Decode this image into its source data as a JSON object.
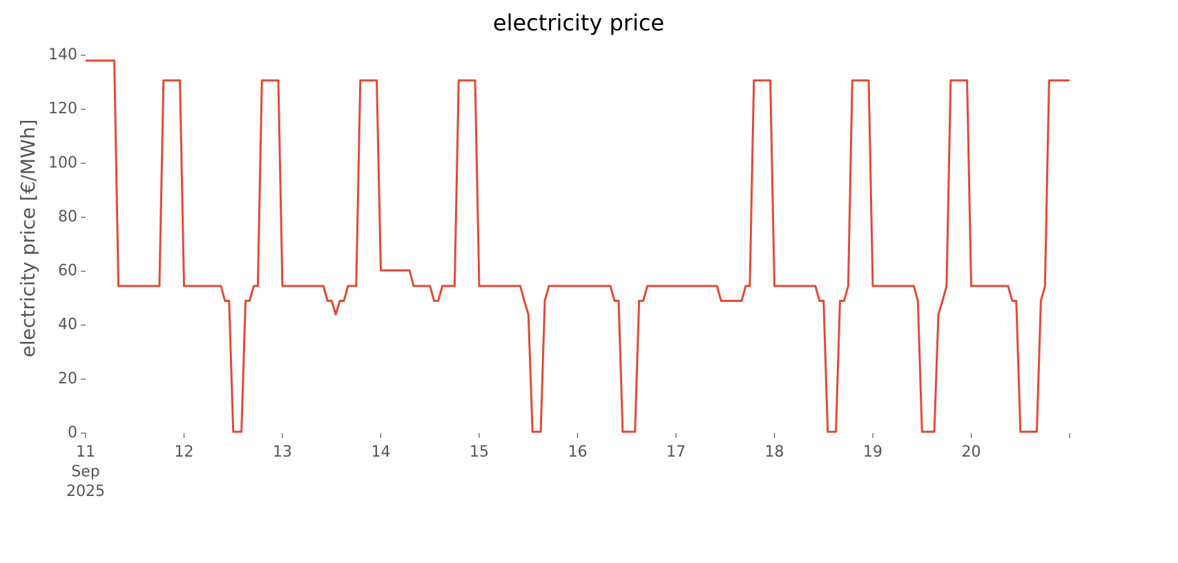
{
  "chart_data": {
    "type": "line",
    "title": "electricity price",
    "ylabel": "electricity price [€/MWh]",
    "x": [
      "2025-09-11 00:00",
      "2025-09-11 01:00",
      "2025-09-11 02:00",
      "2025-09-11 03:00",
      "2025-09-11 04:00",
      "2025-09-11 05:00",
      "2025-09-11 06:00",
      "2025-09-11 07:00",
      "2025-09-11 08:00",
      "2025-09-11 09:00",
      "2025-09-11 10:00",
      "2025-09-11 11:00",
      "2025-09-11 12:00",
      "2025-09-11 13:00",
      "2025-09-11 14:00",
      "2025-09-11 15:00",
      "2025-09-11 16:00",
      "2025-09-11 17:00",
      "2025-09-11 18:00",
      "2025-09-11 19:00",
      "2025-09-11 20:00",
      "2025-09-11 21:00",
      "2025-09-11 22:00",
      "2025-09-11 23:00",
      "2025-09-12 00:00",
      "2025-09-12 01:00",
      "2025-09-12 02:00",
      "2025-09-12 03:00",
      "2025-09-12 04:00",
      "2025-09-12 05:00",
      "2025-09-12 06:00",
      "2025-09-12 07:00",
      "2025-09-12 08:00",
      "2025-09-12 09:00",
      "2025-09-12 10:00",
      "2025-09-12 11:00",
      "2025-09-12 12:00",
      "2025-09-12 13:00",
      "2025-09-12 14:00",
      "2025-09-12 15:00",
      "2025-09-12 16:00",
      "2025-09-12 17:00",
      "2025-09-12 18:00",
      "2025-09-12 19:00",
      "2025-09-12 20:00",
      "2025-09-12 21:00",
      "2025-09-12 22:00",
      "2025-09-12 23:00",
      "2025-09-13 00:00",
      "2025-09-13 01:00",
      "2025-09-13 02:00",
      "2025-09-13 03:00",
      "2025-09-13 04:00",
      "2025-09-13 05:00",
      "2025-09-13 06:00",
      "2025-09-13 07:00",
      "2025-09-13 08:00",
      "2025-09-13 09:00",
      "2025-09-13 10:00",
      "2025-09-13 11:00",
      "2025-09-13 12:00",
      "2025-09-13 13:00",
      "2025-09-13 14:00",
      "2025-09-13 15:00",
      "2025-09-13 16:00",
      "2025-09-13 17:00",
      "2025-09-13 18:00",
      "2025-09-13 19:00",
      "2025-09-13 20:00",
      "2025-09-13 21:00",
      "2025-09-13 22:00",
      "2025-09-13 23:00",
      "2025-09-14 00:00",
      "2025-09-14 01:00",
      "2025-09-14 02:00",
      "2025-09-14 03:00",
      "2025-09-14 04:00",
      "2025-09-14 05:00",
      "2025-09-14 06:00",
      "2025-09-14 07:00",
      "2025-09-14 08:00",
      "2025-09-14 09:00",
      "2025-09-14 10:00",
      "2025-09-14 11:00",
      "2025-09-14 12:00",
      "2025-09-14 13:00",
      "2025-09-14 14:00",
      "2025-09-14 15:00",
      "2025-09-14 16:00",
      "2025-09-14 17:00",
      "2025-09-14 18:00",
      "2025-09-14 19:00",
      "2025-09-14 20:00",
      "2025-09-14 21:00",
      "2025-09-14 22:00",
      "2025-09-14 23:00",
      "2025-09-15 00:00",
      "2025-09-15 01:00",
      "2025-09-15 02:00",
      "2025-09-15 03:00",
      "2025-09-15 04:00",
      "2025-09-15 05:00",
      "2025-09-15 06:00",
      "2025-09-15 07:00",
      "2025-09-15 08:00",
      "2025-09-15 09:00",
      "2025-09-15 10:00",
      "2025-09-15 11:00",
      "2025-09-15 12:00",
      "2025-09-15 13:00",
      "2025-09-15 14:00",
      "2025-09-15 15:00",
      "2025-09-15 16:00",
      "2025-09-15 17:00",
      "2025-09-15 18:00",
      "2025-09-15 19:00",
      "2025-09-15 20:00",
      "2025-09-15 21:00",
      "2025-09-15 22:00",
      "2025-09-15 23:00",
      "2025-09-16 00:00",
      "2025-09-16 01:00",
      "2025-09-16 02:00",
      "2025-09-16 03:00",
      "2025-09-16 04:00",
      "2025-09-16 05:00",
      "2025-09-16 06:00",
      "2025-09-16 07:00",
      "2025-09-16 08:00",
      "2025-09-16 09:00",
      "2025-09-16 10:00",
      "2025-09-16 11:00",
      "2025-09-16 12:00",
      "2025-09-16 13:00",
      "2025-09-16 14:00",
      "2025-09-16 15:00",
      "2025-09-16 16:00",
      "2025-09-16 17:00",
      "2025-09-16 18:00",
      "2025-09-16 19:00",
      "2025-09-16 20:00",
      "2025-09-16 21:00",
      "2025-09-16 22:00",
      "2025-09-16 23:00",
      "2025-09-17 00:00",
      "2025-09-17 01:00",
      "2025-09-17 02:00",
      "2025-09-17 03:00",
      "2025-09-17 04:00",
      "2025-09-17 05:00",
      "2025-09-17 06:00",
      "2025-09-17 07:00",
      "2025-09-17 08:00",
      "2025-09-17 09:00",
      "2025-09-17 10:00",
      "2025-09-17 11:00",
      "2025-09-17 12:00",
      "2025-09-17 13:00",
      "2025-09-17 14:00",
      "2025-09-17 15:00",
      "2025-09-17 16:00",
      "2025-09-17 17:00",
      "2025-09-17 18:00",
      "2025-09-17 19:00",
      "2025-09-17 20:00",
      "2025-09-17 21:00",
      "2025-09-17 22:00",
      "2025-09-17 23:00",
      "2025-09-18 00:00",
      "2025-09-18 01:00",
      "2025-09-18 02:00",
      "2025-09-18 03:00",
      "2025-09-18 04:00",
      "2025-09-18 05:00",
      "2025-09-18 06:00",
      "2025-09-18 07:00",
      "2025-09-18 08:00",
      "2025-09-18 09:00",
      "2025-09-18 10:00",
      "2025-09-18 11:00",
      "2025-09-18 12:00",
      "2025-09-18 13:00",
      "2025-09-18 14:00",
      "2025-09-18 15:00",
      "2025-09-18 16:00",
      "2025-09-18 17:00",
      "2025-09-18 18:00",
      "2025-09-18 19:00",
      "2025-09-18 20:00",
      "2025-09-18 21:00",
      "2025-09-18 22:00",
      "2025-09-18 23:00",
      "2025-09-19 00:00",
      "2025-09-19 01:00",
      "2025-09-19 02:00",
      "2025-09-19 03:00",
      "2025-09-19 04:00",
      "2025-09-19 05:00",
      "2025-09-19 06:00",
      "2025-09-19 07:00",
      "2025-09-19 08:00",
      "2025-09-19 09:00",
      "2025-09-19 10:00",
      "2025-09-19 11:00",
      "2025-09-19 12:00",
      "2025-09-19 13:00",
      "2025-09-19 14:00",
      "2025-09-19 15:00",
      "2025-09-19 16:00",
      "2025-09-19 17:00",
      "2025-09-19 18:00",
      "2025-09-19 19:00",
      "2025-09-19 20:00",
      "2025-09-19 21:00",
      "2025-09-19 22:00",
      "2025-09-19 23:00",
      "2025-09-20 00:00",
      "2025-09-20 01:00",
      "2025-09-20 02:00",
      "2025-09-20 03:00",
      "2025-09-20 04:00",
      "2025-09-20 05:00",
      "2025-09-20 06:00",
      "2025-09-20 07:00",
      "2025-09-20 08:00",
      "2025-09-20 09:00",
      "2025-09-20 10:00",
      "2025-09-20 11:00",
      "2025-09-20 12:00",
      "2025-09-20 13:00",
      "2025-09-20 14:00",
      "2025-09-20 15:00",
      "2025-09-20 16:00",
      "2025-09-20 17:00",
      "2025-09-20 18:00",
      "2025-09-20 19:00",
      "2025-09-20 20:00",
      "2025-09-20 21:00",
      "2025-09-20 22:00",
      "2025-09-20 23:00",
      "2025-09-21 00:00"
    ],
    "series": [
      {
        "name": "electricity price",
        "color": "#e24a33",
        "values": [
          138,
          138,
          138,
          138,
          138,
          138,
          138,
          138,
          54.5,
          54.5,
          54.5,
          54.5,
          54.5,
          54.5,
          54.5,
          54.5,
          54.5,
          54.5,
          54.5,
          130.7,
          130.7,
          130.7,
          130.7,
          130.7,
          54.5,
          54.5,
          54.5,
          54.5,
          54.5,
          54.5,
          54.5,
          54.5,
          54.5,
          54.5,
          49,
          49,
          0.5,
          0.5,
          0.5,
          49,
          49,
          54.5,
          54.5,
          130.7,
          130.7,
          130.7,
          130.7,
          130.7,
          54.5,
          54.5,
          54.5,
          54.5,
          54.5,
          54.5,
          54.5,
          54.5,
          54.5,
          54.5,
          54.5,
          49,
          49,
          44,
          49,
          49,
          54.5,
          54.5,
          54.5,
          130.7,
          130.7,
          130.7,
          130.7,
          130.7,
          60.3,
          60.3,
          60.3,
          60.3,
          60.3,
          60.3,
          60.3,
          60.3,
          54.5,
          54.5,
          54.5,
          54.5,
          54.5,
          49,
          49,
          54.5,
          54.5,
          54.5,
          54.5,
          130.7,
          130.7,
          130.7,
          130.7,
          130.7,
          54.5,
          54.5,
          54.5,
          54.5,
          54.5,
          54.5,
          54.5,
          54.5,
          54.5,
          54.5,
          54.5,
          49,
          44,
          0.5,
          0.5,
          0.5,
          49,
          54.5,
          54.5,
          54.5,
          54.5,
          54.5,
          54.5,
          54.5,
          54.5,
          54.5,
          54.5,
          54.5,
          54.5,
          54.5,
          54.5,
          54.5,
          54.5,
          49,
          49,
          0.5,
          0.5,
          0.5,
          0.5,
          49,
          49,
          54.5,
          54.5,
          54.5,
          54.5,
          54.5,
          54.5,
          54.5,
          54.5,
          54.5,
          54.5,
          54.5,
          54.5,
          54.5,
          54.5,
          54.5,
          54.5,
          54.5,
          54.5,
          49,
          49,
          49,
          49,
          49,
          49,
          54.5,
          54.5,
          130.7,
          130.7,
          130.7,
          130.7,
          130.7,
          54.5,
          54.5,
          54.5,
          54.5,
          54.5,
          54.5,
          54.5,
          54.5,
          54.5,
          54.5,
          54.5,
          49,
          49,
          0.5,
          0.5,
          0.5,
          49,
          49,
          54.5,
          130.7,
          130.7,
          130.7,
          130.7,
          130.7,
          54.5,
          54.5,
          54.5,
          54.5,
          54.5,
          54.5,
          54.5,
          54.5,
          54.5,
          54.5,
          54.5,
          49,
          0.5,
          0.5,
          0.5,
          0.5,
          44,
          49,
          54.5,
          130.7,
          130.7,
          130.7,
          130.7,
          130.7,
          54.5,
          54.5,
          54.5,
          54.5,
          54.5,
          54.5,
          54.5,
          54.5,
          54.5,
          54.5,
          49,
          49,
          0.5,
          0.5,
          0.5,
          0.5,
          0.5,
          49,
          54.5,
          130.7,
          130.7,
          130.7,
          130.7,
          130.7,
          130.7
        ]
      }
    ],
    "xlim": [
      "2025-09-11 00:00",
      "2025-09-21 00:00"
    ],
    "xticks": [
      {
        "value": "2025-09-11 00:00",
        "label": "11\nSep\n2025"
      },
      {
        "value": "2025-09-12 00:00",
        "label": "12"
      },
      {
        "value": "2025-09-13 00:00",
        "label": "13"
      },
      {
        "value": "2025-09-14 00:00",
        "label": "14"
      },
      {
        "value": "2025-09-15 00:00",
        "label": "15"
      },
      {
        "value": "2025-09-16 00:00",
        "label": "16"
      },
      {
        "value": "2025-09-17 00:00",
        "label": "17"
      },
      {
        "value": "2025-09-18 00:00",
        "label": "18"
      },
      {
        "value": "2025-09-19 00:00",
        "label": "19"
      },
      {
        "value": "2025-09-20 00:00",
        "label": "20"
      },
      {
        "value": "2025-09-21 00:00",
        "label": null
      }
    ],
    "ylim": [
      0,
      140
    ],
    "yticks": [
      0,
      20,
      40,
      60,
      80,
      100,
      120,
      140
    ],
    "grid": false
  }
}
